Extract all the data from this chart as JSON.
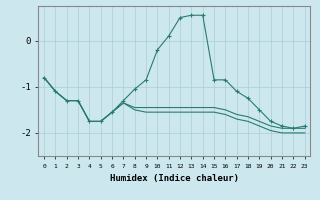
{
  "xlabel": "Humidex (Indice chaleur)",
  "bg_color": "#cce8ee",
  "line_color": "#2a7a72",
  "grid_color": "#aacdd4",
  "x_values": [
    0,
    1,
    2,
    3,
    4,
    5,
    6,
    7,
    8,
    9,
    10,
    11,
    12,
    13,
    14,
    15,
    16,
    17,
    18,
    19,
    20,
    21,
    22,
    23
  ],
  "line1": [
    -0.8,
    -1.1,
    -1.3,
    -1.3,
    -1.75,
    -1.75,
    -1.55,
    -1.3,
    -1.05,
    -0.85,
    -0.2,
    0.1,
    0.5,
    0.55,
    0.55,
    -0.85,
    -0.85,
    -1.1,
    -1.25,
    -1.5,
    -1.75,
    -1.85,
    -1.9,
    -1.85
  ],
  "line2": [
    -0.8,
    -1.1,
    -1.3,
    -1.3,
    -1.75,
    -1.75,
    -1.55,
    -1.35,
    -1.45,
    -1.45,
    -1.45,
    -1.45,
    -1.45,
    -1.45,
    -1.45,
    -1.45,
    -1.5,
    -1.6,
    -1.65,
    -1.75,
    -1.85,
    -1.9,
    -1.9,
    -1.9
  ],
  "line3": [
    -0.8,
    -1.1,
    -1.3,
    -1.3,
    -1.75,
    -1.75,
    -1.55,
    -1.35,
    -1.5,
    -1.55,
    -1.55,
    -1.55,
    -1.55,
    -1.55,
    -1.55,
    -1.55,
    -1.6,
    -1.7,
    -1.75,
    -1.85,
    -1.95,
    -2.0,
    -2.0,
    -2.0
  ],
  "ylim": [
    -2.5,
    0.75
  ],
  "yticks": [
    -2,
    -1,
    0
  ],
  "xticks": [
    0,
    1,
    2,
    3,
    4,
    5,
    6,
    7,
    8,
    9,
    10,
    11,
    12,
    13,
    14,
    15,
    16,
    17,
    18,
    19,
    20,
    21,
    22,
    23
  ]
}
